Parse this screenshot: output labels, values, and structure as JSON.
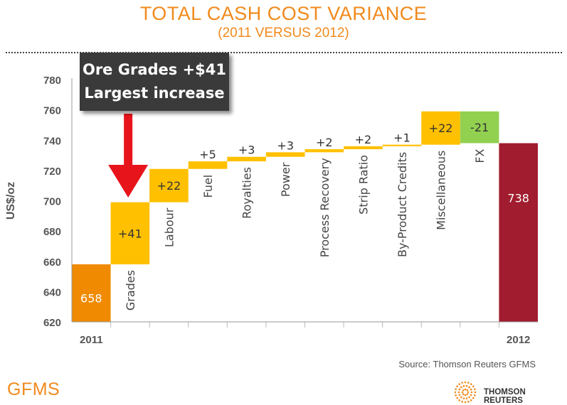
{
  "title": "TOTAL CASH COST VARIANCE",
  "subtitle": "(2011 VERSUS 2012)",
  "callout": {
    "line1": "Ore Grades +$41",
    "line2": "Largest increase"
  },
  "source": "Source: Thomson Reuters GFMS",
  "logo_left": "GFMS",
  "logo_right": "THOMSON REUTERS",
  "colors": {
    "title": "#f08a1c",
    "start": "#f08a00",
    "increase": "#ffc000",
    "decrease": "#92d050",
    "end": "#a01c2e",
    "arrow": "#e8141b",
    "callout": "#3a3a3a"
  },
  "chart_data": {
    "type": "waterfall",
    "ylabel": "US$/oz",
    "ylim": [
      620,
      780
    ],
    "yticks": [
      620,
      640,
      660,
      680,
      700,
      720,
      740,
      760,
      780
    ],
    "x_axis_labels": [
      "2011",
      "2012"
    ],
    "bars": [
      {
        "label": "",
        "value": 658,
        "kind": "start",
        "value_label": "658"
      },
      {
        "label": "Grades",
        "value": 41,
        "kind": "increase",
        "value_label": "+41"
      },
      {
        "label": "Labour",
        "value": 22,
        "kind": "increase",
        "value_label": "+22"
      },
      {
        "label": "Fuel",
        "value": 5,
        "kind": "increase",
        "value_label": "+5"
      },
      {
        "label": "Royalties",
        "value": 3,
        "kind": "increase",
        "value_label": "+3"
      },
      {
        "label": "Power",
        "value": 3,
        "kind": "increase",
        "value_label": "+3"
      },
      {
        "label": "Process Recovery",
        "value": 2,
        "kind": "increase",
        "value_label": "+2"
      },
      {
        "label": "Strip Ratio",
        "value": 2,
        "kind": "increase",
        "value_label": "+2"
      },
      {
        "label": "By-Product Credits",
        "value": 1,
        "kind": "increase",
        "value_label": "+1"
      },
      {
        "label": "Miscellaneous",
        "value": 22,
        "kind": "increase",
        "value_label": "+22"
      },
      {
        "label": "FX",
        "value": -21,
        "kind": "decrease",
        "value_label": "-21"
      },
      {
        "label": "",
        "value": 738,
        "kind": "end",
        "value_label": "738"
      }
    ]
  }
}
